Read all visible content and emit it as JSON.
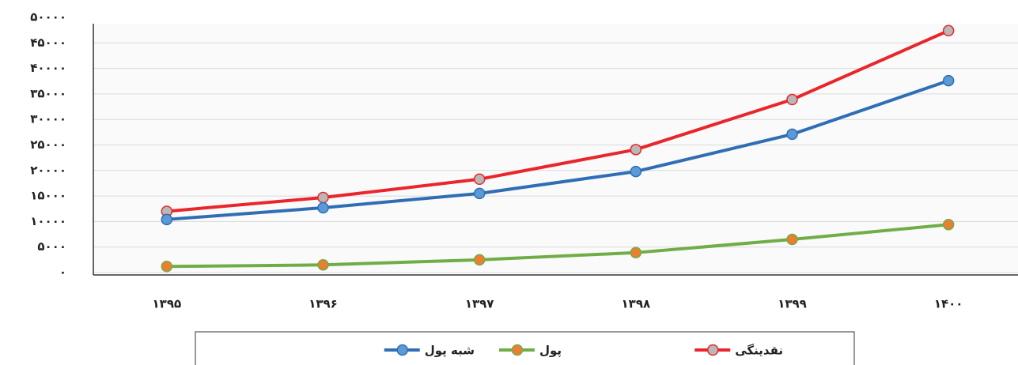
{
  "chart_data": {
    "type": "line",
    "categories": [
      "۱۳۹۵",
      "۱۳۹۶",
      "۱۳۹۷",
      "۱۳۹۸",
      "۱۳۹۹",
      "۱۴۰۰"
    ],
    "series": [
      {
        "name": "نقدینگی",
        "color": "#e8262b",
        "marker_color": "#b8b8b8",
        "values": [
          12000,
          14700,
          18300,
          24100,
          33900,
          47400
        ]
      },
      {
        "name": "پول",
        "color": "#70ad47",
        "marker_color": "#ed7d31",
        "values": [
          1200,
          1500,
          2500,
          3900,
          6500,
          9400
        ]
      },
      {
        "name": "شبه پول",
        "color": "#2f6eb5",
        "marker_color": "#5b9bd5",
        "values": [
          10400,
          12700,
          15500,
          19800,
          27100,
          37600
        ]
      }
    ],
    "ylim": [
      0,
      50000
    ],
    "yticks": [
      {
        "value": 0,
        "label": "۰"
      },
      {
        "value": 5000,
        "label": "۵۰۰۰"
      },
      {
        "value": 10000,
        "label": "۱۰۰۰۰"
      },
      {
        "value": 15000,
        "label": "۱۵۰۰۰"
      },
      {
        "value": 20000,
        "label": "۲۰۰۰۰"
      },
      {
        "value": 25000,
        "label": "۲۵۰۰۰"
      },
      {
        "value": 30000,
        "label": "۳۰۰۰۰"
      },
      {
        "value": 35000,
        "label": "۳۵۰۰۰"
      },
      {
        "value": 40000,
        "label": "۴۰۰۰۰"
      },
      {
        "value": 45000,
        "label": "۴۵۰۰۰"
      },
      {
        "value": 50000,
        "label": "۵۰۰۰۰"
      }
    ],
    "grid": true,
    "legend": "bottom"
  }
}
